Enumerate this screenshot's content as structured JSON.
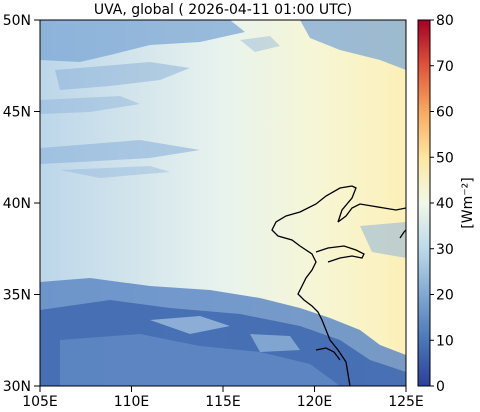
{
  "map": {
    "title": "UVA, global ( 2026-04-11 01:00 UTC)",
    "x_ticks": [
      "105E",
      "110E",
      "115E",
      "120E",
      "125E"
    ],
    "y_ticks": [
      "30N",
      "35N",
      "40N",
      "45N",
      "50N"
    ],
    "extent": {
      "lon": [
        105,
        125
      ],
      "lat": [
        30,
        50
      ]
    }
  },
  "colorbar": {
    "label": "[Wm⁻²]",
    "ticks": [
      "0",
      "10",
      "20",
      "30",
      "40",
      "50",
      "60",
      "70",
      "80"
    ],
    "range": [
      0,
      80
    ],
    "colors": [
      "#2c3f9a",
      "#4a76b8",
      "#7fa9d2",
      "#bcd9ea",
      "#f0f8e8",
      "#fde6a0",
      "#f9a85f",
      "#e0533a",
      "#a50026"
    ]
  }
}
